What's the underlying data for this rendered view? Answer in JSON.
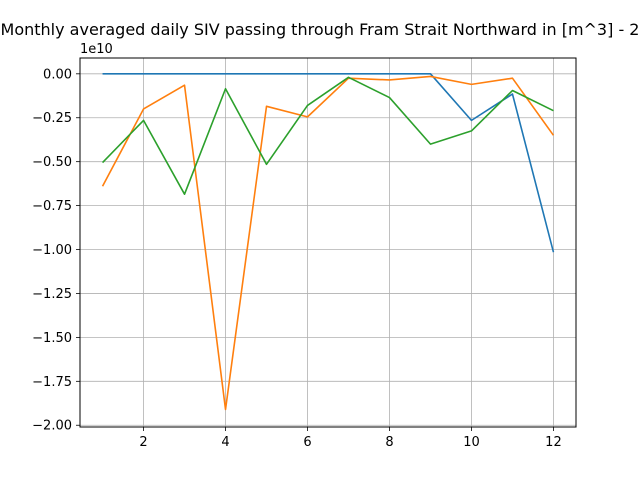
{
  "chart_data": {
    "type": "line",
    "title": "Monthly averaged daily SIV passing through Fram Strait Northward in [m^3] - 2",
    "offset_label": "1e10",
    "xlabel": "",
    "ylabel": "",
    "x": [
      1,
      2,
      3,
      4,
      5,
      6,
      7,
      8,
      9,
      10,
      11,
      12
    ],
    "xlim": [
      0.45,
      12.55
    ],
    "ylim": [
      -2.01,
      0.09
    ],
    "x_ticks": [
      2,
      4,
      6,
      8,
      10,
      12
    ],
    "x_tick_labels": [
      "2",
      "4",
      "6",
      "8",
      "10",
      "12"
    ],
    "y_ticks": [
      0.0,
      -0.25,
      -0.5,
      -0.75,
      -1.0,
      -1.25,
      -1.5,
      -1.75,
      -2.0
    ],
    "y_tick_labels": [
      "0.00",
      "−0.25",
      "−0.50",
      "−0.75",
      "−1.00",
      "−1.25",
      "−1.50",
      "−1.75",
      "−2.00"
    ],
    "grid": true,
    "series": [
      {
        "color": "#1f77b4",
        "values": [
          0.0,
          0.0,
          0.0,
          0.0,
          0.0,
          0.0,
          0.0,
          0.0,
          0.0,
          -0.265,
          -0.115,
          -1.015
        ]
      },
      {
        "color": "#ff7f0e",
        "values": [
          -0.64,
          -0.2,
          -0.065,
          -1.91,
          -0.185,
          -0.245,
          -0.025,
          -0.035,
          -0.015,
          -0.06,
          -0.025,
          -0.35
        ]
      },
      {
        "color": "#2ca02c",
        "values": [
          -0.505,
          -0.265,
          -0.685,
          -0.085,
          -0.515,
          -0.18,
          -0.02,
          -0.135,
          -0.4,
          -0.325,
          -0.095,
          -0.21
        ]
      }
    ]
  }
}
